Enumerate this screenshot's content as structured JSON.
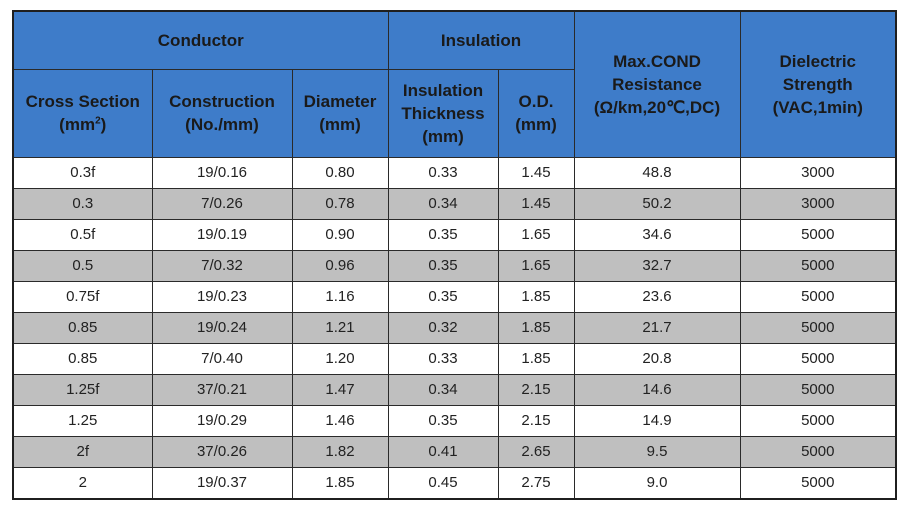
{
  "header": {
    "conductor": "Conductor",
    "insulation": "Insulation",
    "max_cond": [
      "Max.COND",
      "Resistance",
      "(Ω/km,20℃,DC)"
    ],
    "dielectric": [
      "Dielectric",
      "Strength",
      "(VAC,1min)"
    ],
    "cross_section": [
      "Cross Section",
      "(mm",
      "2",
      ")"
    ],
    "construction": [
      "Construction",
      "(No./mm)"
    ],
    "diameter": [
      "Diameter",
      "(mm)"
    ],
    "insulation_thickness": [
      "Insulation",
      "Thickness",
      "(mm)"
    ],
    "od": [
      "O.D.",
      "(mm)"
    ]
  },
  "rows": [
    [
      "0.3f",
      "19/0.16",
      "0.80",
      "0.33",
      "1.45",
      "48.8",
      "3000"
    ],
    [
      "0.3",
      "7/0.26",
      "0.78",
      "0.34",
      "1.45",
      "50.2",
      "3000"
    ],
    [
      "0.5f",
      "19/0.19",
      "0.90",
      "0.35",
      "1.65",
      "34.6",
      "5000"
    ],
    [
      "0.5",
      "7/0.32",
      "0.96",
      "0.35",
      "1.65",
      "32.7",
      "5000"
    ],
    [
      "0.75f",
      "19/0.23",
      "1.16",
      "0.35",
      "1.85",
      "23.6",
      "5000"
    ],
    [
      "0.85",
      "19/0.24",
      "1.21",
      "0.32",
      "1.85",
      "21.7",
      "5000"
    ],
    [
      "0.85",
      "7/0.40",
      "1.20",
      "0.33",
      "1.85",
      "20.8",
      "5000"
    ],
    [
      "1.25f",
      "37/0.21",
      "1.47",
      "0.34",
      "2.15",
      "14.6",
      "5000"
    ],
    [
      "1.25",
      "19/0.29",
      "1.46",
      "0.35",
      "2.15",
      "14.9",
      "5000"
    ],
    [
      "2f",
      "37/0.26",
      "1.82",
      "0.41",
      "2.65",
      "9.5",
      "5000"
    ],
    [
      "2",
      "19/0.37",
      "1.85",
      "0.45",
      "2.75",
      "9.0",
      "5000"
    ]
  ],
  "colors": {
    "header_bg": "#3e7cc9",
    "row_even_bg": "#bfbfbf",
    "row_odd_bg": "#ffffff"
  }
}
